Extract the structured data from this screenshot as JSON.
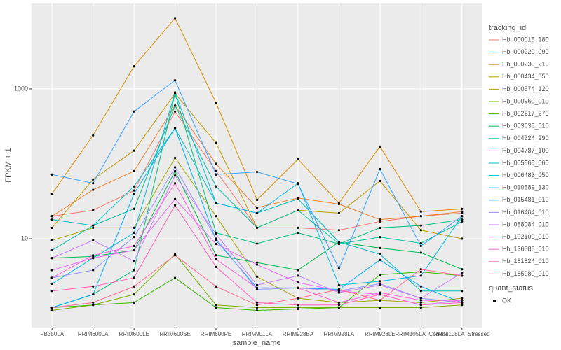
{
  "chart_data": {
    "type": "line",
    "y_label": "FPKM + 1",
    "x_label": "sample_name",
    "categories": [
      "PB350LA",
      "RRIM600LA",
      "RRIM600LE",
      "RRIM600SE",
      "RRIM600PE",
      "RRIM901LA",
      "RRIM928BA",
      "RRIM928LA",
      "RRIM928LE",
      "RRIM105LA_Control",
      "RRIM105LA_Stressed"
    ],
    "log_y": true,
    "grid": true,
    "ylim": [
      0.65,
      13800
    ],
    "yticks": [
      10,
      1000
    ],
    "legend_title": "tracking_id",
    "legend_position": "right",
    "shape_legend": {
      "title": "quant_status",
      "labels": [
        "OK"
      ]
    },
    "series": [
      {
        "name": "Hb_000015_180",
        "color": "#F8766D",
        "values": [
          20,
          24,
          44,
          500,
          80,
          14,
          14,
          13,
          17,
          20,
          22
        ]
      },
      {
        "name": "Hb_000220_090",
        "color": "#EA8331",
        "values": [
          20,
          45,
          80,
          600,
          100,
          26,
          35,
          29,
          18,
          20,
          23
        ]
      },
      {
        "name": "Hb_000230_210",
        "color": "#D89000",
        "values": [
          40,
          240,
          2000,
          8800,
          650,
          33,
          115,
          30,
          170,
          23,
          25
        ]
      },
      {
        "name": "Hb_000434_050",
        "color": "#C09B00",
        "values": [
          14,
          62,
          150,
          870,
          190,
          14,
          24,
          22,
          59,
          13,
          10
        ]
      },
      {
        "name": "Hb_000574_120",
        "color": "#A3A500",
        "values": [
          9.5,
          14,
          14,
          120,
          20,
          3.1,
          1.6,
          1.4,
          1.5,
          1.4,
          1.6
        ]
      },
      {
        "name": "Hb_000960_010",
        "color": "#7CAE00",
        "values": [
          1.1,
          1.3,
          1.8,
          6.2,
          1.3,
          1.2,
          1.2,
          1.2,
          1.2,
          1.2,
          1.3
        ]
      },
      {
        "name": "Hb_002217_270",
        "color": "#39B600",
        "values": [
          1.2,
          1.3,
          1.4,
          3.0,
          1.2,
          1.1,
          1.15,
          1.2,
          3.3,
          3.6,
          3.2
        ]
      },
      {
        "name": "Hb_003038_010",
        "color": "#00BB4E",
        "values": [
          5.5,
          5.8,
          7,
          80,
          6,
          4.8,
          3.8,
          9,
          7.5,
          6.5,
          3.9
        ]
      },
      {
        "name": "Hb_004324_290",
        "color": "#00BF7D",
        "values": [
          1.2,
          1.8,
          3.8,
          870,
          12,
          8.6,
          12,
          8.5,
          14,
          15,
          18
        ]
      },
      {
        "name": "Hb_004787_100",
        "color": "#00C1A3",
        "values": [
          7,
          15,
          25,
          600,
          50,
          14,
          24,
          8.5,
          10.5,
          8.7,
          17
        ]
      },
      {
        "name": "Hb_005568_060",
        "color": "#00BFC4",
        "values": [
          18,
          15,
          50,
          300,
          30,
          22,
          34,
          9,
          6.2,
          2,
          2
        ]
      },
      {
        "name": "Hb_006483_050",
        "color": "#00BAE0",
        "values": [
          2.5,
          5.5,
          12,
          900,
          30,
          22,
          55,
          2.4,
          2.7,
          3.2,
          20
        ]
      },
      {
        "name": "Hb_010589_130",
        "color": "#00B0F6",
        "values": [
          1.2,
          1.8,
          40,
          300,
          9.5,
          2.2,
          2.2,
          2.1,
          5.2,
          2.3,
          1.4
        ]
      },
      {
        "name": "Hb_015481_010",
        "color": "#35A2FF",
        "values": [
          72,
          55,
          500,
          1300,
          72,
          78,
          54,
          4,
          85,
          8,
          20
        ]
      },
      {
        "name": "Hb_016404_010",
        "color": "#9590FF",
        "values": [
          3.0,
          3.8,
          10.5,
          90,
          10,
          2.1,
          2.2,
          2.0,
          2.5,
          1.6,
          1.4
        ]
      },
      {
        "name": "Hb_088084_010",
        "color": "#C77CFF",
        "values": [
          5.5,
          9.5,
          5,
          70,
          11.5,
          2.4,
          3.2,
          1.9,
          2.4,
          1.6,
          3.5
        ]
      },
      {
        "name": "Hb_102100_010",
        "color": "#E76BF3",
        "values": [
          3.8,
          5.5,
          7,
          34,
          8.5,
          4.5,
          2.6,
          2.0,
          1.8,
          1.3,
          1.5
        ]
      },
      {
        "name": "Hb_136886_010",
        "color": "#FA62DB",
        "values": [
          3.0,
          6.0,
          8.0,
          55,
          5.3,
          2.2,
          2.2,
          1.4,
          1.9,
          1.5,
          1.5
        ]
      },
      {
        "name": "Hb_181824_010",
        "color": "#FF62BC",
        "values": [
          2.0,
          2.3,
          3.0,
          28,
          4.2,
          1.4,
          1.3,
          1.3,
          1.8,
          1.3,
          1.4
        ]
      },
      {
        "name": "Hb_185080_010",
        "color": "#FF6C91",
        "values": [
          1.2,
          1.4,
          2.3,
          6.0,
          2.3,
          1.3,
          1.6,
          2.1,
          1.5,
          3.9,
          3.2
        ]
      }
    ]
  }
}
